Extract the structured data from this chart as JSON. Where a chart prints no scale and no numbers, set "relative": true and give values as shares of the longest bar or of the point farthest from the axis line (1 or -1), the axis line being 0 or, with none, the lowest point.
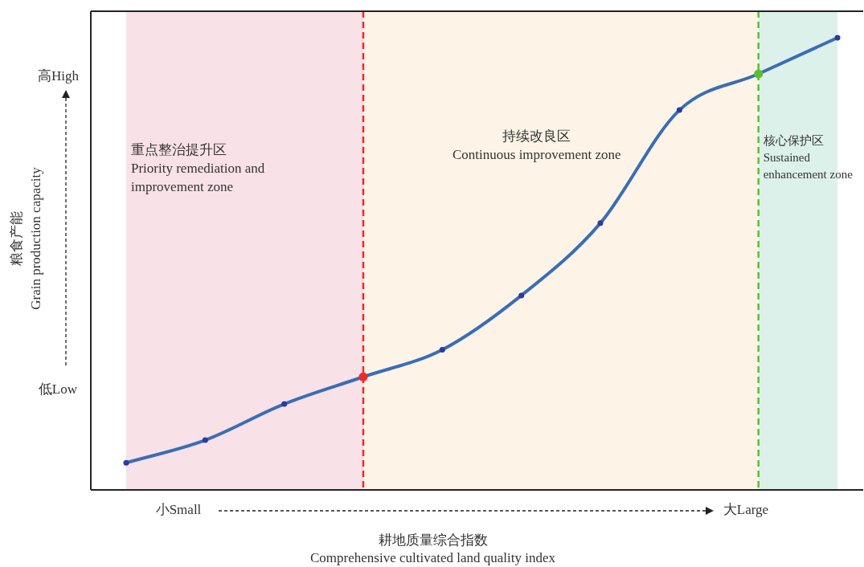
{
  "chart_data": {
    "type": "line",
    "xlabel": "耕地质量综合指数\nComprehensive cultivated land quality index",
    "ylabel": "粮食产能\nGrain production capacity",
    "categories": [
      null,
      null,
      null,
      null,
      null,
      null,
      null,
      null,
      null,
      null
    ],
    "relative": true,
    "series": [
      {
        "color": "#3a6db5",
        "values": [
          0.06,
          0.11,
          0.19,
          0.25,
          0.31,
          0.43,
          0.59,
          0.84,
          0.92,
          1.0
        ],
        "colors": [
          "#2b3c9c",
          "#2b3c9c",
          "#2b3c9c",
          "#ee2a2a",
          "#2b3c9c",
          "#2b3c9c",
          "#2b3c9c",
          "#2b3c9c",
          "#5cbf2a",
          "#2b3c9c"
        ]
      }
    ],
    "marker": "circle",
    "line_style": "solid",
    "annotations": [
      "高High",
      "低Low",
      "小Small",
      "大Large",
      "重点整治提升区\nPriority remediation and\nimprovement zone",
      "持续改良区\nContinuous improvement zone",
      "核心保护区\nSustained\nenhancement zone"
    ]
  }
}
